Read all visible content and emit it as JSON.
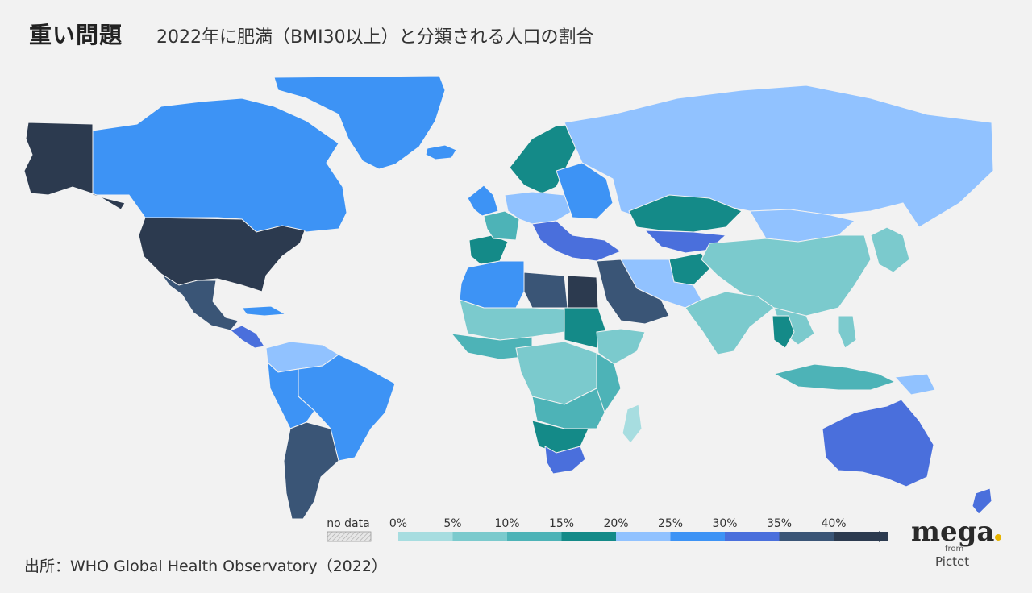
{
  "header": {
    "heading": "重い問題",
    "subtitle": "2022年に肥満（BMI30以上）と分類される人口の割合"
  },
  "legend": {
    "no_data_label": "no data",
    "tick_labels": [
      "0%",
      "5%",
      "10%",
      "15%",
      "20%",
      "25%",
      "30%",
      "35%",
      "40%"
    ],
    "bin_colors": [
      "#a7dde0",
      "#7bcacd",
      "#4db3b7",
      "#148a88",
      "#91c2ff",
      "#3d93f5",
      "#4a6fdc",
      "#3a5576",
      "#2c3a4f"
    ],
    "no_data_color": "#d9d9d9"
  },
  "map": {
    "background_color": "#f2f2f2",
    "region_values_pct": {
      "alaska": 41.5,
      "canada": 28,
      "greenland": 27,
      "usa": 41.6,
      "mexico": 36,
      "central_america": 30,
      "caribbean": 27,
      "colombia_venezuela": 24,
      "brazil": 28,
      "peru_bolivia": 27,
      "argentina_chile": 37,
      "iceland": 27,
      "uk_ireland": 28,
      "iberia": 18,
      "france": 12,
      "central_europe": 24,
      "scandinavia": 18,
      "eastern_europe": 26,
      "balkans_turkey": 32,
      "russia": 24,
      "kazakhstan": 19,
      "central_asia": 31,
      "afghanistan_region": 16,
      "iran_pakistan": 24,
      "arabian_peninsula": 37,
      "egypt": 42,
      "north_africa_west": 26,
      "libya": 37,
      "sahel": 8,
      "sudan": 18,
      "horn_of_africa": 5,
      "west_africa": 10,
      "central_africa": 8,
      "east_africa": 12,
      "southern_africa_north": 12,
      "southern_africa_mid": 18,
      "south_africa": 33,
      "madagascar": 4,
      "india_south_asia": 7,
      "china": 9,
      "korea_japan": 7,
      "mongolia": 24,
      "southeast_asia": 8,
      "thailand": 16,
      "indonesia": 10,
      "philippines": 8,
      "papua": 24,
      "australia": 32,
      "new_zealand": 32
    }
  },
  "source": "出所：WHO Global Health Observatory（2022）",
  "brand": {
    "name": "mega",
    "dot_color": "#e8b400",
    "from": "from",
    "sub": "Pictet"
  }
}
